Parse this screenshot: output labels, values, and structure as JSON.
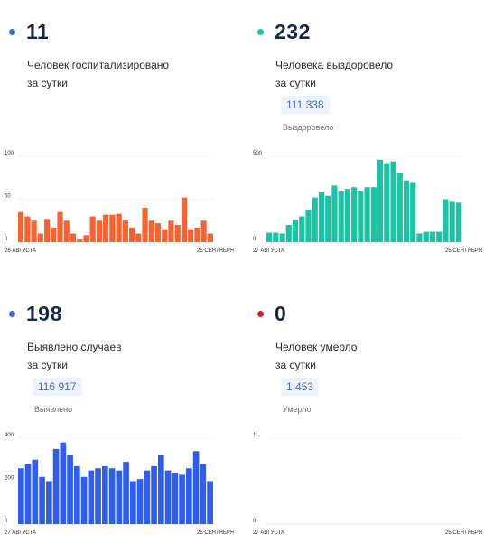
{
  "panels": [
    {
      "value": "11",
      "dot_color": "#3b6fd8",
      "desc_lines": [
        "Человек госпитализировано",
        "за сутки"
      ],
      "total": null,
      "total_label": null,
      "chart": {
        "color": "#f26533",
        "ymax": 100,
        "yticks": [
          "100",
          "50",
          "0"
        ],
        "start": "26 АВГУСТА",
        "end": "25 СЕНТЯБРЯ"
      }
    },
    {
      "value": "232",
      "dot_color": "#1fc2a5",
      "desc_lines": [
        "Человека выздоровело",
        "за сутки"
      ],
      "total": "111 338",
      "total_label": "Выздоровело",
      "chart": {
        "color": "#1fc2a5",
        "ymax": 500,
        "yticks": [
          "500",
          "0"
        ],
        "start": "27 АВГУСТА",
        "end": "25 СЕНТЯБРЯ"
      }
    },
    {
      "value": "198",
      "dot_color": "#3b6fd8",
      "desc_lines": [
        "Выявлено случаев",
        "за сутки"
      ],
      "total": "116 917",
      "total_label": "Выявлено",
      "chart": {
        "color": "#2f5fe6",
        "ymax": 400,
        "yticks": [
          "400",
          "200",
          "0"
        ],
        "start": "27 АВГУСТА",
        "end": "25 СЕНТЯБРЯ"
      }
    },
    {
      "value": "0",
      "dot_color": "#c62828",
      "desc_lines": [
        "Человек умерло",
        "за сутки"
      ],
      "total": "1 453",
      "total_label": "Умерло",
      "chart": {
        "color": "#c62828",
        "ymax": 1,
        "yticks": [
          "1",
          "0"
        ],
        "start": "27 АВГУСТА",
        "end": "25 СЕНТЯБРЯ"
      }
    }
  ],
  "chart_data": [
    {
      "type": "bar",
      "x_start": "26 АВГУСТА",
      "x_end": "25 СЕНТЯБРЯ",
      "ylim": [
        0,
        100
      ],
      "values": [
        35,
        30,
        25,
        10,
        27,
        17,
        35,
        25,
        10,
        3,
        8,
        30,
        25,
        32,
        32,
        33,
        25,
        17,
        10,
        40,
        25,
        22,
        15,
        25,
        20,
        52,
        15,
        17,
        25,
        10
      ]
    },
    {
      "type": "bar",
      "x_start": "27 АВГУСТА",
      "x_end": "25 СЕНТЯБРЯ",
      "ylim": [
        0,
        500
      ],
      "values": [
        55,
        55,
        50,
        100,
        130,
        150,
        190,
        260,
        290,
        270,
        330,
        300,
        310,
        320,
        300,
        320,
        320,
        480,
        460,
        470,
        400,
        360,
        350,
        50,
        60,
        60,
        60,
        250,
        240,
        230
      ]
    },
    {
      "type": "bar",
      "x_start": "27 АВГУСТА",
      "x_end": "25 СЕНТЯБРЯ",
      "ylim": [
        0,
        400
      ],
      "values": [
        260,
        280,
        300,
        220,
        200,
        350,
        380,
        320,
        270,
        220,
        250,
        260,
        270,
        260,
        250,
        290,
        200,
        210,
        250,
        270,
        320,
        250,
        240,
        230,
        260,
        340,
        280,
        200
      ]
    },
    {
      "type": "bar",
      "x_start": "27 АВГУСТА",
      "x_end": "25 СЕНТЯБРЯ",
      "ylim": [
        0,
        1
      ],
      "values": []
    }
  ]
}
